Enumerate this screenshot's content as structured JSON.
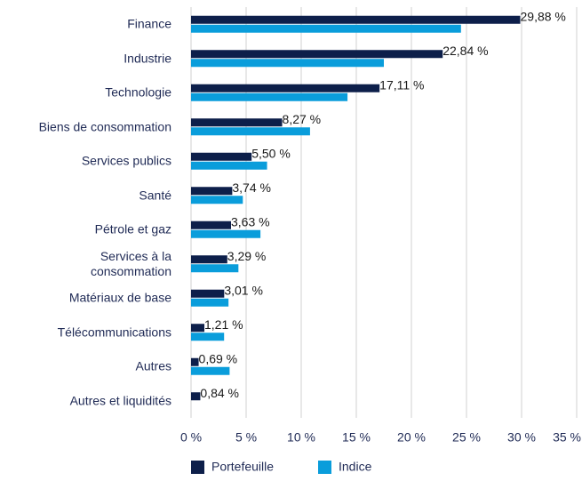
{
  "chart_data": {
    "type": "bar",
    "orientation": "horizontal",
    "categories": [
      "Finance",
      "Industrie",
      "Technologie",
      "Biens de consommation",
      "Services publics",
      "Santé",
      "Pétrole et gaz",
      "Services à la consommation",
      "Matériaux de base",
      "Télécommunications",
      "Autres",
      "Autres et liquidités"
    ],
    "series": [
      {
        "name": "Portefeuille",
        "color": "#0d1f4a",
        "values": [
          29.88,
          22.84,
          17.11,
          8.27,
          5.5,
          3.74,
          3.63,
          3.29,
          3.01,
          1.21,
          0.69,
          0.84
        ],
        "value_labels": [
          "29,88 %",
          "22,84 %",
          "17,11 %",
          "8,27 %",
          "5,50 %",
          "3,74 %",
          "3,63 %",
          "3,29 %",
          "3,01 %",
          "1,21 %",
          "0,69 %",
          "0,84 %"
        ]
      },
      {
        "name": "Indice",
        "color": "#0a9ddb",
        "values": [
          24.5,
          17.5,
          14.2,
          10.8,
          6.9,
          4.7,
          6.3,
          4.3,
          3.4,
          3.0,
          3.5,
          null
        ]
      }
    ],
    "xlim": [
      0,
      35
    ],
    "xticks": [
      {
        "value": 0,
        "label": "0 %"
      },
      {
        "value": 5,
        "label": "5 %"
      },
      {
        "value": 10,
        "label": "10 %"
      },
      {
        "value": 15,
        "label": "15 %"
      },
      {
        "value": 20,
        "label": "20 %"
      },
      {
        "value": 25,
        "label": "25 %"
      },
      {
        "value": 30,
        "label": "30 %"
      },
      {
        "value": 35,
        "label": "35 %"
      }
    ],
    "grid": true,
    "legend": "bottom"
  }
}
